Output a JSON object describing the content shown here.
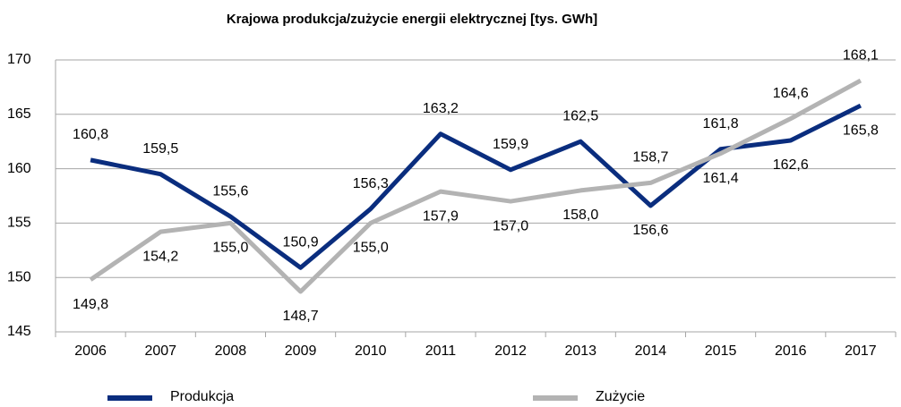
{
  "chart_data": {
    "type": "line",
    "title": "Krajowa produkcja/zużycie energii elektrycznej [tys. GWh]",
    "categories": [
      "2006",
      "2007",
      "2008",
      "2009",
      "2010",
      "2011",
      "2012",
      "2013",
      "2014",
      "2015",
      "2016",
      "2017"
    ],
    "series": [
      {
        "name": "Produkcja",
        "color": "#0a2d7e",
        "values": [
          160.8,
          159.5,
          155.6,
          150.9,
          156.3,
          163.2,
          159.9,
          162.5,
          156.6,
          161.8,
          162.6,
          165.8
        ],
        "value_labels": [
          "160,8",
          "159,5",
          "155,6",
          "150,9",
          "156,3",
          "163,2",
          "159,9",
          "162,5",
          "156,6",
          "161,8",
          "162,6",
          "165,8"
        ]
      },
      {
        "name": "Zużycie",
        "color": "#b3b3b3",
        "values": [
          149.8,
          154.2,
          155.0,
          148.7,
          155.0,
          157.9,
          157.0,
          158.0,
          158.7,
          161.4,
          164.6,
          168.1
        ],
        "value_labels": [
          "149,8",
          "154,2",
          "155,0",
          "148,7",
          "155,0",
          "157,9",
          "157,0",
          "158,0",
          "158,7",
          "161,4",
          "164,6",
          "168,1"
        ]
      }
    ],
    "ylim": [
      145,
      170
    ],
    "yticks": [
      145,
      150,
      155,
      160,
      165,
      170
    ],
    "grid": true,
    "legend": "bottom"
  }
}
